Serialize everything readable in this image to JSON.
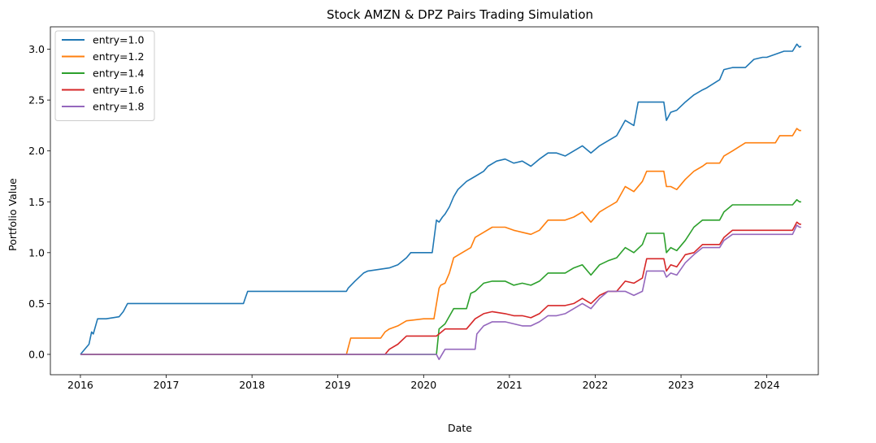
{
  "chart_data": {
    "type": "line",
    "title": "Stock AMZN & DPZ Pairs Trading Simulation",
    "xlabel": "Date",
    "ylabel": "Portfolio Value",
    "xlim": [
      2015.65,
      2024.6
    ],
    "ylim": [
      -0.2,
      3.22
    ],
    "xticks": [
      2016,
      2017,
      2018,
      2019,
      2020,
      2021,
      2022,
      2023,
      2024
    ],
    "xtick_labels": [
      "2016",
      "2017",
      "2018",
      "2019",
      "2020",
      "2021",
      "2022",
      "2023",
      "2024"
    ],
    "yticks": [
      0.0,
      0.5,
      1.0,
      1.5,
      2.0,
      2.5,
      3.0
    ],
    "ytick_labels": [
      "0.0",
      "0.5",
      "1.0",
      "1.5",
      "2.0",
      "2.5",
      "3.0"
    ],
    "grid": false,
    "legend_position": "top-left",
    "series": [
      {
        "name": "entry=1.0",
        "color": "#1f77b4",
        "x": [
          2016.0,
          2016.05,
          2016.1,
          2016.13,
          2016.15,
          2016.2,
          2016.3,
          2016.45,
          2016.5,
          2016.55,
          2017.9,
          2017.92,
          2017.95,
          2019.1,
          2019.12,
          2019.2,
          2019.3,
          2019.35,
          2019.6,
          2019.7,
          2019.8,
          2019.85,
          2020.0,
          2020.1,
          2020.15,
          2020.18,
          2020.22,
          2020.25,
          2020.3,
          2020.35,
          2020.4,
          2020.5,
          2020.6,
          2020.7,
          2020.75,
          2020.85,
          2020.95,
          2021.05,
          2021.15,
          2021.25,
          2021.35,
          2021.45,
          2021.55,
          2021.65,
          2021.75,
          2021.85,
          2021.95,
          2022.05,
          2022.15,
          2022.25,
          2022.35,
          2022.45,
          2022.5,
          2022.6,
          2022.8,
          2022.83,
          2022.88,
          2022.95,
          2023.05,
          2023.15,
          2023.25,
          2023.3,
          2023.45,
          2023.5,
          2023.6,
          2023.75,
          2023.85,
          2023.95,
          2024.0,
          2024.2,
          2024.3,
          2024.35,
          2024.38,
          2024.4
        ],
        "y": [
          0.0,
          0.05,
          0.1,
          0.22,
          0.2,
          0.35,
          0.35,
          0.37,
          0.42,
          0.5,
          0.5,
          0.55,
          0.62,
          0.62,
          0.65,
          0.72,
          0.8,
          0.82,
          0.85,
          0.88,
          0.95,
          1.0,
          1.0,
          1.0,
          1.32,
          1.3,
          1.35,
          1.38,
          1.45,
          1.55,
          1.62,
          1.7,
          1.75,
          1.8,
          1.85,
          1.9,
          1.92,
          1.88,
          1.9,
          1.85,
          1.92,
          1.98,
          1.98,
          1.95,
          2.0,
          2.05,
          1.98,
          2.05,
          2.1,
          2.15,
          2.3,
          2.25,
          2.48,
          2.48,
          2.48,
          2.3,
          2.38,
          2.4,
          2.48,
          2.55,
          2.6,
          2.62,
          2.7,
          2.8,
          2.82,
          2.82,
          2.9,
          2.92,
          2.92,
          2.98,
          2.98,
          3.05,
          3.02,
          3.03
        ]
      },
      {
        "name": "entry=1.2",
        "color": "#ff7f0e",
        "x": [
          2016.0,
          2019.1,
          2019.15,
          2019.5,
          2019.55,
          2019.6,
          2019.7,
          2019.8,
          2020.0,
          2020.12,
          2020.18,
          2020.2,
          2020.25,
          2020.3,
          2020.35,
          2020.45,
          2020.55,
          2020.6,
          2020.7,
          2020.8,
          2020.95,
          2021.05,
          2021.15,
          2021.25,
          2021.35,
          2021.45,
          2021.55,
          2021.65,
          2021.75,
          2021.85,
          2021.95,
          2022.05,
          2022.15,
          2022.25,
          2022.35,
          2022.45,
          2022.55,
          2022.6,
          2022.8,
          2022.83,
          2022.88,
          2022.95,
          2023.05,
          2023.15,
          2023.25,
          2023.3,
          2023.45,
          2023.5,
          2023.6,
          2023.75,
          2024.0,
          2024.1,
          2024.15,
          2024.3,
          2024.35,
          2024.38,
          2024.4
        ],
        "y": [
          0.0,
          0.0,
          0.16,
          0.16,
          0.22,
          0.25,
          0.28,
          0.33,
          0.35,
          0.35,
          0.65,
          0.68,
          0.7,
          0.8,
          0.95,
          1.0,
          1.05,
          1.15,
          1.2,
          1.25,
          1.25,
          1.22,
          1.2,
          1.18,
          1.22,
          1.32,
          1.32,
          1.32,
          1.35,
          1.4,
          1.3,
          1.4,
          1.45,
          1.5,
          1.65,
          1.6,
          1.7,
          1.8,
          1.8,
          1.65,
          1.65,
          1.62,
          1.72,
          1.8,
          1.85,
          1.88,
          1.88,
          1.95,
          2.0,
          2.08,
          2.08,
          2.08,
          2.15,
          2.15,
          2.22,
          2.2,
          2.2
        ]
      },
      {
        "name": "entry=1.4",
        "color": "#2ca02c",
        "x": [
          2016.0,
          2020.15,
          2020.18,
          2020.25,
          2020.35,
          2020.5,
          2020.55,
          2020.6,
          2020.7,
          2020.8,
          2020.95,
          2021.05,
          2021.15,
          2021.25,
          2021.35,
          2021.45,
          2021.55,
          2021.65,
          2021.75,
          2021.85,
          2021.95,
          2022.05,
          2022.15,
          2022.25,
          2022.35,
          2022.45,
          2022.55,
          2022.6,
          2022.8,
          2022.83,
          2022.88,
          2022.95,
          2023.05,
          2023.15,
          2023.25,
          2023.3,
          2023.45,
          2023.5,
          2023.6,
          2024.3,
          2024.35,
          2024.38,
          2024.4
        ],
        "y": [
          0.0,
          0.0,
          0.25,
          0.3,
          0.45,
          0.45,
          0.6,
          0.62,
          0.7,
          0.72,
          0.72,
          0.68,
          0.7,
          0.68,
          0.72,
          0.8,
          0.8,
          0.8,
          0.85,
          0.88,
          0.78,
          0.88,
          0.92,
          0.95,
          1.05,
          1.0,
          1.08,
          1.19,
          1.19,
          1.0,
          1.05,
          1.02,
          1.12,
          1.25,
          1.32,
          1.32,
          1.32,
          1.4,
          1.47,
          1.47,
          1.52,
          1.5,
          1.5
        ]
      },
      {
        "name": "entry=1.6",
        "color": "#d62728",
        "x": [
          2016.0,
          2019.55,
          2019.6,
          2019.7,
          2019.8,
          2020.0,
          2020.15,
          2020.18,
          2020.25,
          2020.5,
          2020.6,
          2020.7,
          2020.8,
          2020.95,
          2021.05,
          2021.15,
          2021.25,
          2021.35,
          2021.45,
          2021.55,
          2021.65,
          2021.75,
          2021.85,
          2021.95,
          2022.05,
          2022.15,
          2022.25,
          2022.35,
          2022.45,
          2022.55,
          2022.6,
          2022.8,
          2022.83,
          2022.88,
          2022.95,
          2023.05,
          2023.15,
          2023.25,
          2023.3,
          2023.45,
          2023.5,
          2023.6,
          2024.3,
          2024.35,
          2024.38,
          2024.4
        ],
        "y": [
          0.0,
          0.0,
          0.05,
          0.1,
          0.18,
          0.18,
          0.18,
          0.2,
          0.25,
          0.25,
          0.35,
          0.4,
          0.42,
          0.4,
          0.38,
          0.38,
          0.36,
          0.4,
          0.48,
          0.48,
          0.48,
          0.5,
          0.55,
          0.5,
          0.58,
          0.62,
          0.62,
          0.72,
          0.7,
          0.75,
          0.94,
          0.94,
          0.82,
          0.88,
          0.86,
          0.98,
          1.0,
          1.08,
          1.08,
          1.08,
          1.15,
          1.22,
          1.22,
          1.3,
          1.28,
          1.28
        ]
      },
      {
        "name": "entry=1.8",
        "color": "#9467bd",
        "x": [
          2016.0,
          2020.15,
          2020.18,
          2020.25,
          2020.6,
          2020.62,
          2020.7,
          2020.8,
          2020.95,
          2021.05,
          2021.15,
          2021.25,
          2021.35,
          2021.45,
          2021.55,
          2021.65,
          2021.75,
          2021.85,
          2021.95,
          2022.05,
          2022.15,
          2022.25,
          2022.35,
          2022.45,
          2022.55,
          2022.6,
          2022.8,
          2022.83,
          2022.88,
          2022.95,
          2023.05,
          2023.15,
          2023.25,
          2023.3,
          2023.45,
          2023.5,
          2023.6,
          2024.3,
          2024.35,
          2024.38,
          2024.4
        ],
        "y": [
          0.0,
          0.0,
          -0.05,
          0.05,
          0.05,
          0.2,
          0.28,
          0.32,
          0.32,
          0.3,
          0.28,
          0.28,
          0.32,
          0.38,
          0.38,
          0.4,
          0.45,
          0.5,
          0.45,
          0.55,
          0.62,
          0.62,
          0.62,
          0.58,
          0.62,
          0.82,
          0.82,
          0.76,
          0.8,
          0.78,
          0.9,
          0.98,
          1.05,
          1.05,
          1.05,
          1.12,
          1.18,
          1.18,
          1.27,
          1.25,
          1.25
        ]
      }
    ]
  }
}
